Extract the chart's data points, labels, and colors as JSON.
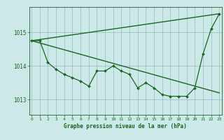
{
  "bg_color": "#cce8e8",
  "line_color": "#1a6620",
  "grid_color": "#99bbbb",
  "xlabel": "Graphe pression niveau de la mer (hPa)",
  "yticks": [
    1013,
    1014,
    1015
  ],
  "xticks": [
    0,
    1,
    2,
    3,
    4,
    5,
    6,
    7,
    8,
    9,
    10,
    11,
    12,
    13,
    14,
    15,
    16,
    17,
    18,
    19,
    20,
    21,
    22,
    23
  ],
  "xlim": [
    -0.3,
    23.3
  ],
  "ylim": [
    1012.55,
    1015.75
  ],
  "series": [
    {
      "x": [
        0,
        23
      ],
      "y": [
        1014.75,
        1015.55
      ],
      "marker": null,
      "markersize": 0,
      "linewidth": 1.0
    },
    {
      "x": [
        0,
        23
      ],
      "y": [
        1014.75,
        1013.2
      ],
      "marker": null,
      "markersize": 0,
      "linewidth": 1.0
    },
    {
      "x": [
        0,
        1,
        2,
        3,
        4,
        5,
        6,
        7,
        8,
        9,
        10,
        11,
        12,
        13,
        14,
        15,
        16,
        17,
        18,
        19,
        20,
        21,
        22,
        23
      ],
      "y": [
        1014.75,
        1014.75,
        1014.1,
        1013.9,
        1013.75,
        1013.65,
        1013.55,
        1013.4,
        1013.85,
        1013.85,
        1014.0,
        1013.85,
        1013.75,
        1013.35,
        1013.5,
        1013.35,
        1013.15,
        1013.1,
        1013.1,
        1013.1,
        1013.35,
        1014.35,
        1015.1,
        1015.55
      ],
      "marker": "D",
      "markersize": 2.0,
      "linewidth": 0.9
    }
  ]
}
